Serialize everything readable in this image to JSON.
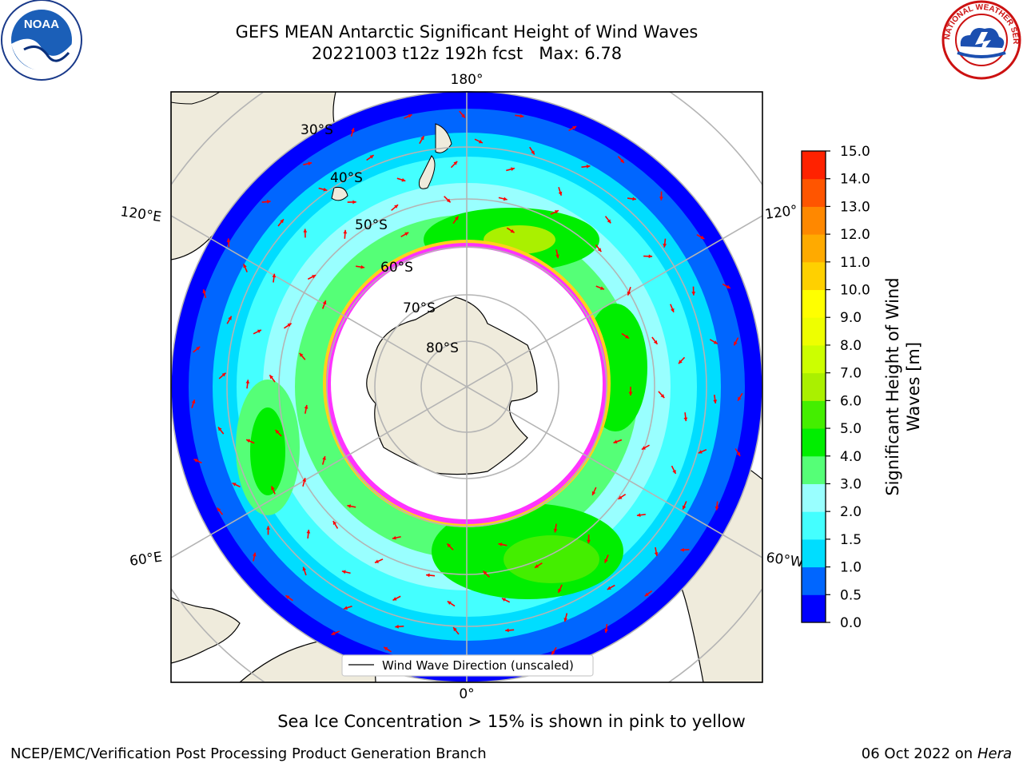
{
  "title": {
    "line1": "GEFS MEAN Antarctic Significant Height of Wind Waves",
    "line2": "20221003 t12z 192h fcst   Max: 6.78"
  },
  "logos": {
    "left": {
      "icon": "noaa-logo-icon",
      "text": "NOAA"
    },
    "right": {
      "icon": "nws-logo-icon",
      "text": "NATIONAL WEATHER SERVICE"
    }
  },
  "map": {
    "projection": "south-polar-stereographic",
    "longitude_labels": {
      "top": "180°",
      "bottom": "0°",
      "left_upper": "120°E",
      "left_lower": "60°E",
      "right_upper": "120°",
      "right_lower": "60°W"
    },
    "latitude_labels": [
      "30°S",
      "40°S",
      "50°S",
      "60°S",
      "70°S",
      "80°S"
    ],
    "legend_label": "Wind Wave Direction (unscaled)",
    "colors": {
      "land": "#efebdc",
      "ice_edge_pink": "#ff33ff",
      "ice_edge_yellow": "#ffd21a",
      "arrow": "#ff0000",
      "grid": "#b4b4b4"
    }
  },
  "colorbar": {
    "label_line1": "Significant Height of Wind",
    "label_line2": "Waves [m]",
    "ticks": [
      "0.0",
      "0.5",
      "1.0",
      "1.5",
      "2.0",
      "3.0",
      "4.0",
      "5.0",
      "6.0",
      "7.0",
      "8.0",
      "9.0",
      "10.0",
      "11.0",
      "12.0",
      "13.0",
      "14.0",
      "15.0"
    ],
    "colors": [
      "#0000ff",
      "#0066ff",
      "#00ddff",
      "#44ffff",
      "#99ffff",
      "#55ff77",
      "#00ee00",
      "#44ee00",
      "#aaf000",
      "#ccff00",
      "#eeff00",
      "#ffff00",
      "#ffd000",
      "#ffaa00",
      "#ff8800",
      "#ff5500",
      "#ff2200"
    ]
  },
  "footer": {
    "ice_note": "Sea Ice Concentration > 15% is shown in pink to yellow",
    "credit": "NCEP/EMC/Verification Post Processing Product Generation Branch",
    "date": "06 Oct 2022 on ",
    "host": "Hera"
  }
}
